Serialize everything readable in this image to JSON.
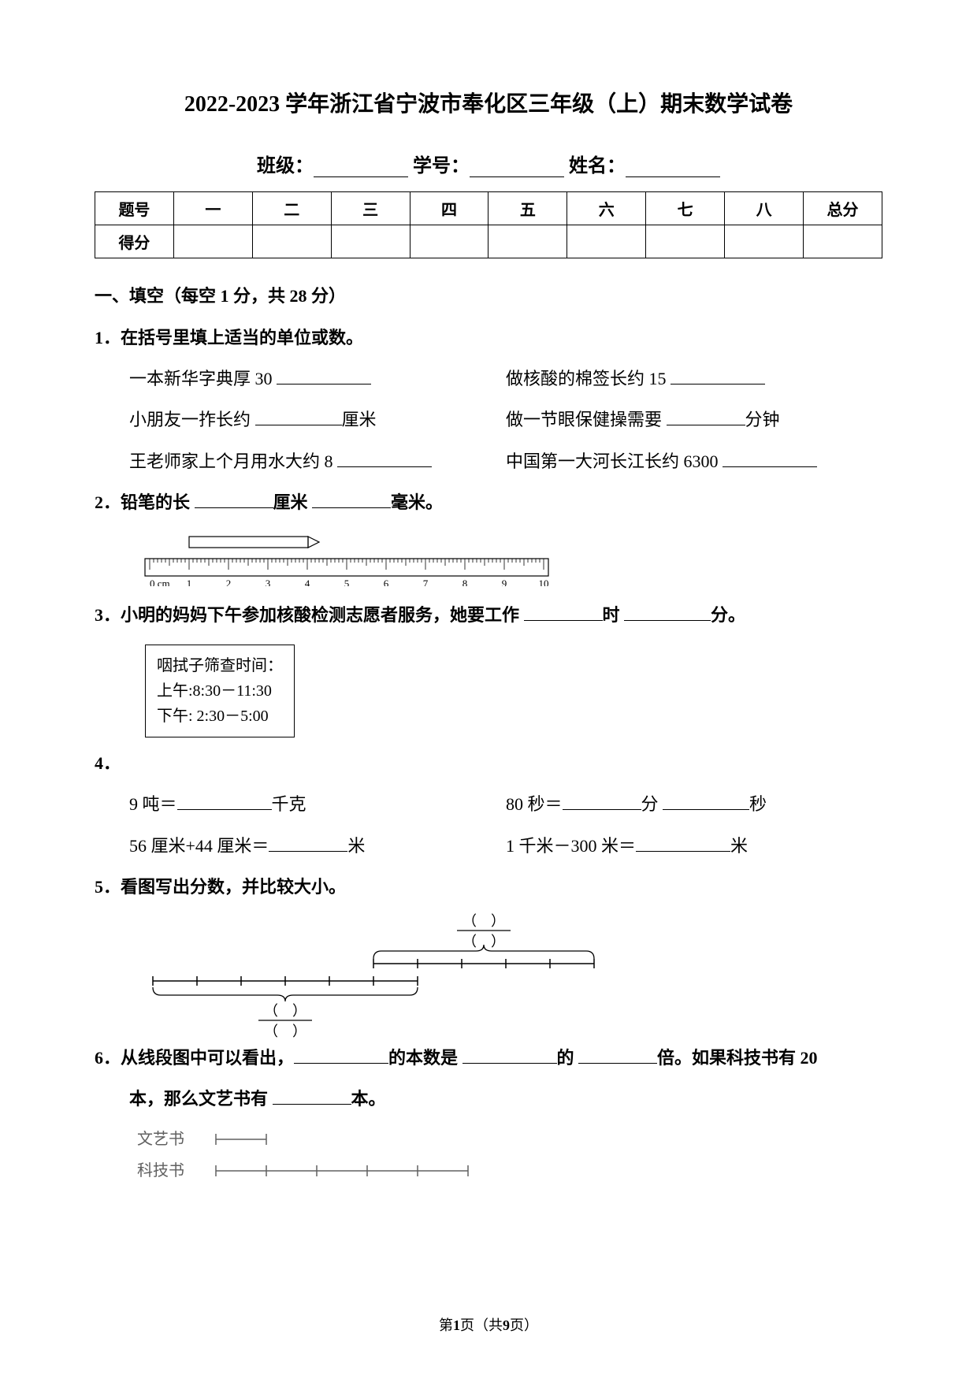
{
  "title": "2022-2023 学年浙江省宁波市奉化区三年级（上）期末数学试卷",
  "info": {
    "class": "班级：",
    "sid": "学号：",
    "name": "姓名："
  },
  "table": {
    "headers": [
      "题号",
      "一",
      "二",
      "三",
      "四",
      "五",
      "六",
      "七",
      "八",
      "总分"
    ],
    "rowLabel": "得分"
  },
  "sec1": {
    "head": "一、填空（每空 1 分，共 28 分）",
    "q1": {
      "stem": "1．在括号里填上适当的单位或数。",
      "a": "一本新华字典厚 30",
      "b": "做核酸的棉签长约 15",
      "c1": "小朋友一拃长约",
      "c2": "厘米",
      "d1": "做一节眼保健操需要",
      "d2": "分钟",
      "e": "王老师家上个月用水大约 8",
      "f": "中国第一大河长江长约 6300"
    },
    "q2": {
      "a": "2．铅笔的长",
      "b": "厘米",
      "c": "毫米。",
      "ruler": {
        "ticks_label": [
          "0 cm",
          "1",
          "2",
          "3",
          "4",
          "5",
          "6",
          "7",
          "8",
          "9",
          "10"
        ],
        "pencil_start": 1.0,
        "pencil_end": 4.3,
        "color": "#000000"
      }
    },
    "q3": {
      "a": "3．小明的妈妈下午参加核酸检测志愿者服务，她要工作",
      "b": "时",
      "c": "分。",
      "box": {
        "l1": "咽拭子筛查时间：",
        "l2": "上午:8:30－11:30",
        "l3": "下午: 2:30－5:00"
      }
    },
    "q4": {
      "head": "4．",
      "a1": "9 吨＝",
      "a2": "千克",
      "b1": "80 秒＝",
      "b2": "分",
      "b3": "秒",
      "c1": "56 厘米+44 厘米＝",
      "c2": "米",
      "d1": "1 千米－300 米＝",
      "d2": "米"
    },
    "q5": {
      "stem": "5．看图写出分数，并比较大小。",
      "top_units": 10,
      "top_span": [
        5,
        10
      ],
      "bot_units": 10,
      "bot_span": [
        0,
        6
      ],
      "stroke": "#000000"
    },
    "q6": {
      "a": "6．从线段图中可以看出，",
      "b": "的本数是",
      "c": "的",
      "d": "倍。如果科技书有 20",
      "e": "本，那么文艺书有",
      "f": "本。",
      "labelA": "文艺书",
      "labelB": "科技书",
      "artUnits": 1,
      "sciUnits": 5,
      "segW": 64,
      "stroke": "#606060"
    }
  },
  "footer": {
    "a": "第",
    "b": "1",
    "c": "页（共",
    "d": "9",
    "e": "页）"
  }
}
